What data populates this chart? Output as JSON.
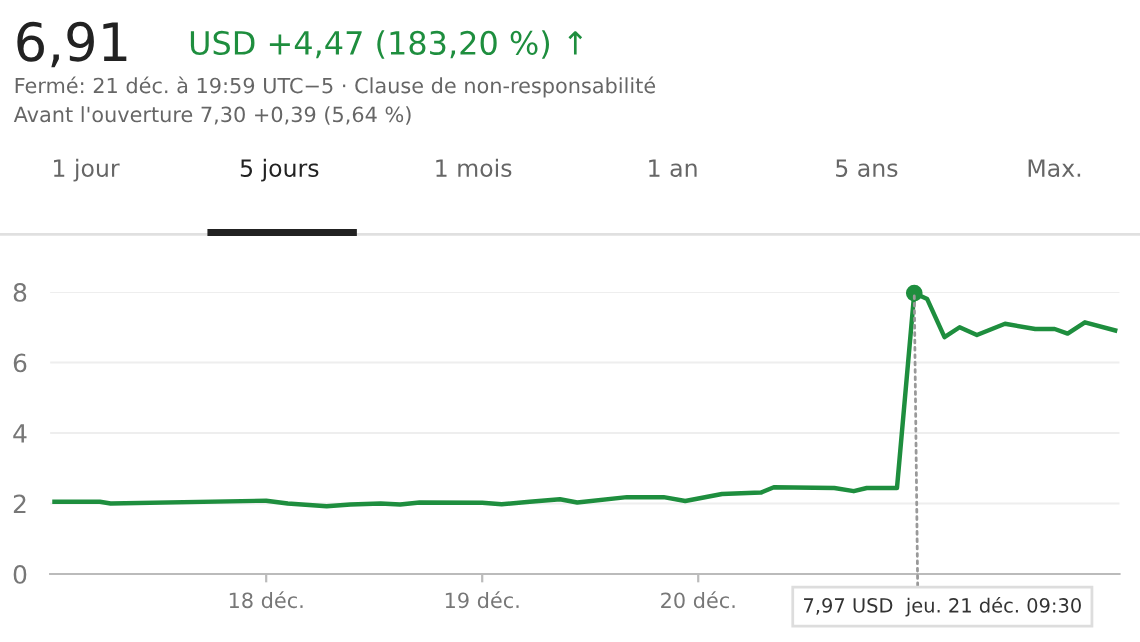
{
  "chart_data": {
    "type": "line",
    "title": "6,91",
    "subtitle": "USD +4,47 (183,20 %) ↑",
    "annotations": [
      "Fermé: 21 déc. à 19:59 UTC−5 · Clause de non-responsabilité",
      "Avant l'ouverture 7,30 +0,39 (5,64 %)",
      "1 jour",
      "5 jours",
      "1 mois",
      "1 an",
      "5 ans",
      "Max.",
      {
        "text": "7,97 USD  jeu. 21 déc. 09:30",
        "x": 21,
        "y": 7.97
      }
    ],
    "x": [
      17.02,
      17.23,
      17.28,
      18.0,
      18.1,
      18.28,
      18.39,
      18.53,
      18.62,
      18.71,
      19.0,
      19.09,
      19.22,
      19.36,
      19.44,
      19.67,
      19.84,
      19.94,
      20.11,
      20.29,
      20.35,
      20.63,
      20.72,
      20.78,
      20.92,
      21.0,
      21.06,
      21.14,
      21.21,
      21.29,
      21.42,
      21.56,
      21.65,
      21.71,
      21.79,
      21.93
    ],
    "series": [
      {
        "color": "#1e8e3e",
        "values": [
          2.05,
          2.05,
          2.0,
          2.08,
          2.0,
          1.92,
          1.97,
          2.0,
          1.97,
          2.03,
          2.02,
          1.98,
          2.05,
          2.12,
          2.03,
          2.18,
          2.18,
          2.07,
          2.27,
          2.31,
          2.46,
          2.44,
          2.35,
          2.44,
          2.44,
          7.97,
          7.8,
          6.72,
          7.0,
          6.78,
          7.1,
          6.95,
          6.95,
          6.82,
          7.14,
          6.91
        ]
      }
    ],
    "xlim": [
      17,
      21.95
    ],
    "xticks": [
      {
        "value": 18,
        "label": "18 déc."
      },
      {
        "value": 19,
        "label": "19 déc."
      },
      {
        "value": 20,
        "label": "20 déc."
      }
    ],
    "ylim": [
      0,
      8
    ],
    "yticks": [
      0,
      2,
      4,
      6,
      8
    ],
    "grid": "y",
    "marker": "none",
    "line_style": "solid",
    "legend": false
  }
}
